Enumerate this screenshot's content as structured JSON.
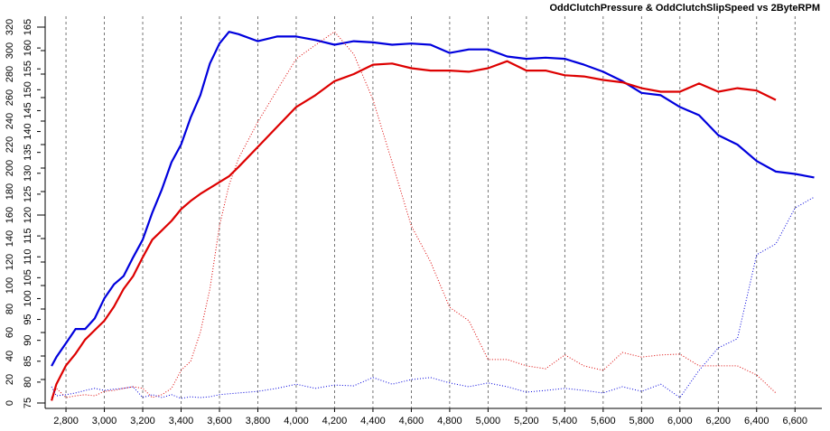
{
  "chart_data": {
    "type": "line",
    "title": "OddClutchPressure & OddClutchSlipSpeed vs 2ByteRPM",
    "x": [
      2725,
      2750,
      2800,
      2850,
      2900,
      2950,
      3000,
      3050,
      3100,
      3150,
      3200,
      3250,
      3300,
      3350,
      3400,
      3450,
      3500,
      3550,
      3600,
      3650,
      3700,
      3800,
      3900,
      4000,
      4100,
      4200,
      4300,
      4400,
      4500,
      4600,
      4700,
      4800,
      4900,
      5000,
      5100,
      5200,
      5300,
      5400,
      5500,
      5600,
      5700,
      5800,
      5900,
      6000,
      6100,
      6200,
      6300,
      6400,
      6500,
      6600,
      6700
    ],
    "series": [
      {
        "color": "#0000dd",
        "style": "solid",
        "width": 2.2,
        "values": [
          31.5,
          39,
          51,
          63,
          63,
          72,
          89,
          101,
          108,
          124,
          139,
          162,
          182,
          205,
          220,
          243,
          262,
          289,
          306,
          316,
          314,
          308,
          312,
          312,
          309,
          305,
          308,
          307,
          305,
          306,
          305,
          298,
          301,
          301,
          295,
          293,
          294,
          293,
          288,
          282,
          274,
          264,
          262,
          252,
          245,
          228,
          220,
          206,
          197,
          195,
          192
        ]
      },
      {
        "color": "#dd0000",
        "style": "solid",
        "width": 2.2,
        "values": [
          2,
          16,
          32,
          42,
          54,
          62,
          70,
          82,
          97,
          108,
          124,
          139,
          147,
          155,
          165,
          172,
          178,
          183,
          188,
          193,
          201,
          218,
          235,
          252,
          262,
          274,
          280,
          288,
          289,
          285,
          283,
          283,
          282,
          285,
          291,
          283,
          283,
          279,
          278,
          275,
          273,
          268,
          265,
          265,
          272,
          265,
          268,
          266,
          258,
          null,
          null
        ]
      },
      {
        "color": "#dd0000",
        "style": "dotted",
        "width": 1,
        "axis": "y2",
        "values": [
          76.3,
          78.5,
          76.3,
          76.7,
          77,
          76.7,
          77.8,
          78,
          78.5,
          78.9,
          78.5,
          76.3,
          77,
          78.5,
          82.8,
          85,
          91.9,
          102.3,
          117.4,
          127.2,
          133.6,
          142.3,
          149.9,
          157.4,
          160.7,
          163.9,
          158.5,
          147.7,
          132.6,
          117.4,
          108.8,
          97.9,
          94.7,
          85.4,
          85.4,
          83.9,
          83.2,
          86.5,
          83.9,
          82.8,
          87.1,
          86,
          86.5,
          86.7,
          83.9,
          83.9,
          83.9,
          81.7,
          77.4,
          null,
          null
        ]
      },
      {
        "color": "#0000dd",
        "style": "dotted",
        "width": 1,
        "axis": "y2",
        "values": [
          78.9,
          76.7,
          77,
          77.4,
          78,
          78.5,
          78,
          78.3,
          78.5,
          78.9,
          76.3,
          77,
          76.3,
          77,
          76.1,
          76.5,
          76.3,
          76.5,
          77,
          77.2,
          77.4,
          77.8,
          78.5,
          79.5,
          78.5,
          79.3,
          79.1,
          81.1,
          79.5,
          80.6,
          81.1,
          79.8,
          78.9,
          79.8,
          78.9,
          77.6,
          78,
          78.5,
          78,
          77.4,
          78.9,
          77.8,
          79.5,
          76.3,
          82.8,
          88.2,
          90.4,
          110.5,
          113.1,
          121.7,
          124.3
        ]
      }
    ],
    "xlim": [
      2715,
      6740
    ],
    "xticks": [
      {
        "value": 2800,
        "label": "2,800"
      },
      {
        "value": 3000,
        "label": "3,000"
      },
      {
        "value": 3200,
        "label": "3,200"
      },
      {
        "value": 3400,
        "label": "3,400"
      },
      {
        "value": 3600,
        "label": "3,600"
      },
      {
        "value": 3800,
        "label": "3,800"
      },
      {
        "value": 4000,
        "label": "4,000"
      },
      {
        "value": 4200,
        "label": "4,200"
      },
      {
        "value": 4400,
        "label": "4,400"
      },
      {
        "value": 4600,
        "label": "4,600"
      },
      {
        "value": 4800,
        "label": "4,800"
      },
      {
        "value": 5000,
        "label": "5,000"
      },
      {
        "value": 5200,
        "label": "5,200"
      },
      {
        "value": 5400,
        "label": "5,400"
      },
      {
        "value": 5600,
        "label": "5,600"
      },
      {
        "value": 5800,
        "label": "5,800"
      },
      {
        "value": 6000,
        "label": "6,000"
      },
      {
        "value": 6200,
        "label": "6,200"
      },
      {
        "value": 6400,
        "label": "6,400"
      },
      {
        "value": 6600,
        "label": "6,600"
      }
    ],
    "ylim": [
      0,
      320
    ],
    "yticks": [
      0,
      20,
      40,
      60,
      80,
      100,
      120,
      140,
      160,
      180,
      200,
      220,
      240,
      260,
      280,
      300,
      320
    ],
    "y2lim": [
      75,
      165
    ],
    "y2ticks": [
      75,
      80,
      85,
      90,
      95,
      100,
      105,
      110,
      115,
      120,
      125,
      130,
      135,
      140,
      145,
      150,
      155,
      160,
      165
    ],
    "grid": true
  }
}
